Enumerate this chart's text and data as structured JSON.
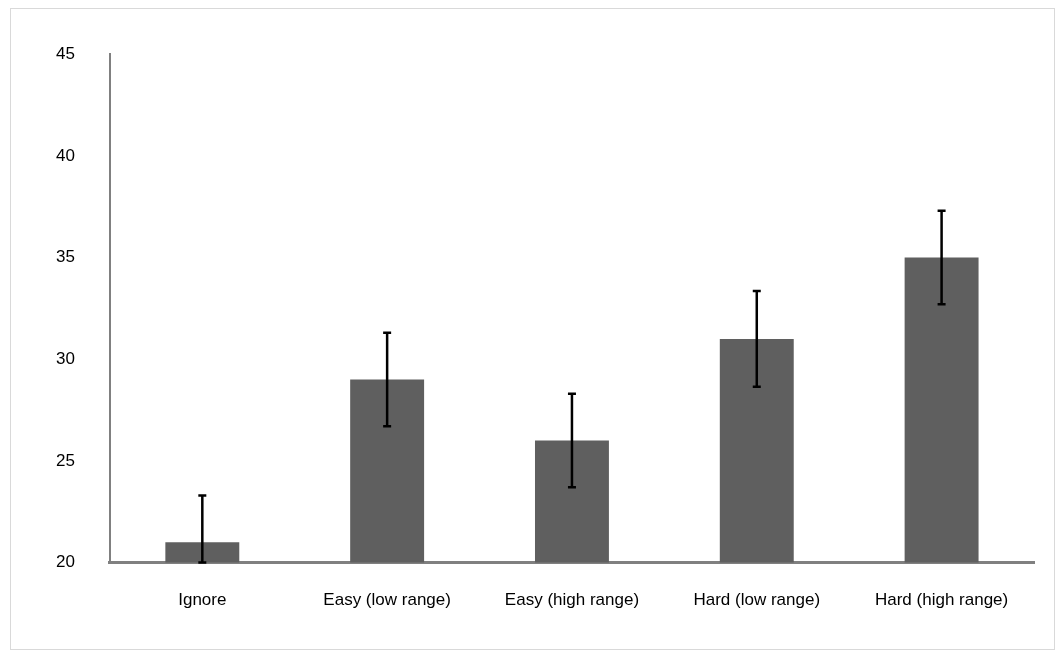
{
  "chart_data": {
    "type": "bar",
    "categories": [
      "Ignore",
      "Easy (low range)",
      "Easy (high range)",
      "Hard (low range)",
      "Hard (high range)"
    ],
    "values": [
      21,
      29,
      26,
      31,
      35
    ],
    "errors": [
      [
        20,
        23.3
      ],
      2.3,
      2.3,
      2.35,
      2.3
    ],
    "color": "#5f5f5f",
    "ylim": [
      20,
      45
    ],
    "yticks": [
      20,
      25,
      30,
      35,
      40,
      45
    ],
    "grid": false,
    "legend": false
  }
}
